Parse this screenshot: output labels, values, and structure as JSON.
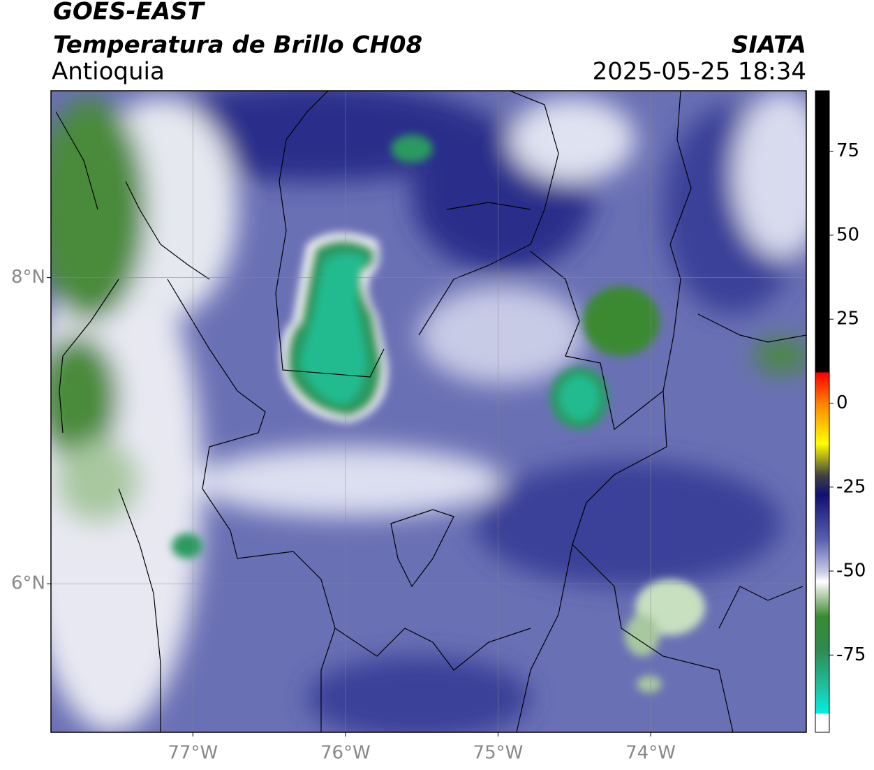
{
  "header": {
    "satellite": "GOES-EAST",
    "product": "Temperatura de Brillo CH08",
    "region": "Antioquia",
    "source": "SIATA",
    "timestamp": "2025-05-25 18:34"
  },
  "map": {
    "lon_lim": [
      -77.93,
      -72.98
    ],
    "lat_lim": [
      5.03,
      9.22
    ],
    "lon_ticks": [
      {
        "value": -77,
        "label": "77°W"
      },
      {
        "value": -76,
        "label": "76°W"
      },
      {
        "value": -75,
        "label": "75°W"
      },
      {
        "value": -74,
        "label": "74°W"
      }
    ],
    "lat_ticks": [
      {
        "value": 8,
        "label": "8°N"
      },
      {
        "value": 6,
        "label": "6°N"
      }
    ]
  },
  "colorbar": {
    "lim": [
      -98,
      93
    ],
    "ticks": [
      75,
      50,
      25,
      0,
      -25,
      -50,
      -75
    ]
  }
}
